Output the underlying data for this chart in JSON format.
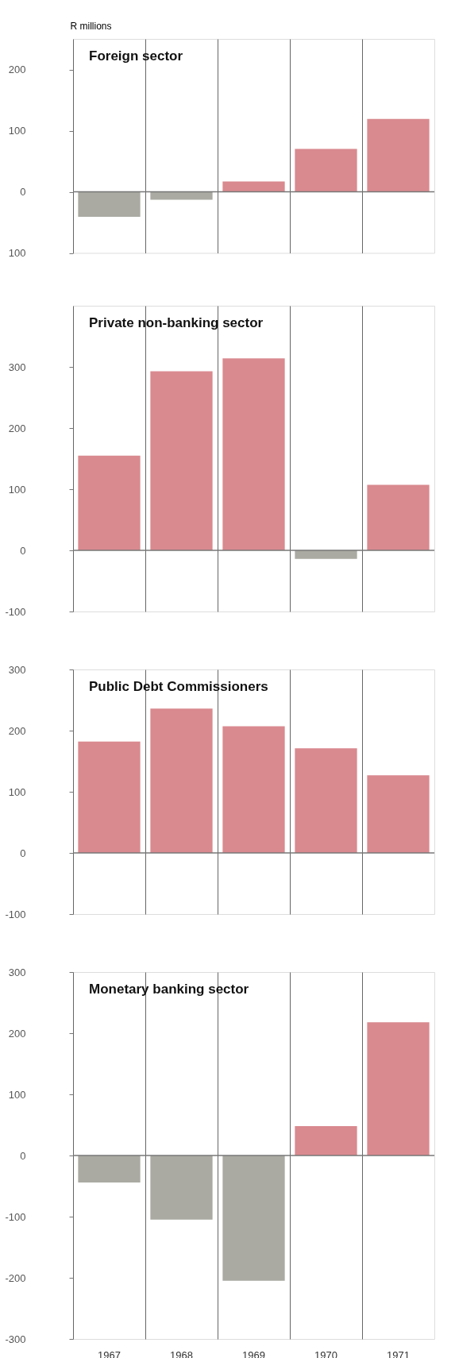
{
  "chart_data": [
    {
      "type": "bar",
      "title": "Foreign sector",
      "ylabel": "R millions",
      "categories": [
        "1967",
        "1968",
        "1969",
        "1970",
        "1971"
      ],
      "values": [
        -41,
        -13,
        17,
        70,
        119
      ],
      "colors": [
        "#aaaaa2",
        "#aaaaa2",
        "#d98a8f",
        "#d98a8f",
        "#d98a8f"
      ],
      "ylim": [
        -100,
        250
      ],
      "yticks": [
        {
          "value": -100,
          "label": "100"
        },
        0,
        100,
        200
      ],
      "grid": "x",
      "tick_labels": "y",
      "ref_lines": [
        {
          "axis": "y",
          "value": 0,
          "color": "#777777"
        }
      ]
    },
    {
      "type": "bar",
      "title": "Private non-banking sector",
      "categories": [
        "1967",
        "1968",
        "1969",
        "1970",
        "1971"
      ],
      "values": [
        155,
        293,
        314,
        -14,
        107
      ],
      "colors": [
        "#d98a8f",
        "#d98a8f",
        "#d98a8f",
        "#aaaaa2",
        "#d98a8f"
      ],
      "ylim": [
        -100,
        400
      ],
      "yticks": [
        -100,
        0,
        100,
        200,
        300
      ],
      "grid": "x",
      "tick_labels": "y",
      "ref_lines": [
        {
          "axis": "y",
          "value": 0,
          "color": "#777777"
        }
      ]
    },
    {
      "type": "bar",
      "title": "Public Debt Commissioners",
      "categories": [
        "1967",
        "1968",
        "1969",
        "1970",
        "1971"
      ],
      "values": [
        182,
        236,
        207,
        171,
        127
      ],
      "colors": [
        "#d98a8f",
        "#d98a8f",
        "#d98a8f",
        "#d98a8f",
        "#d98a8f"
      ],
      "ylim": [
        -100,
        300
      ],
      "yticks": [
        -100,
        0,
        100,
        200,
        300
      ],
      "grid": "x",
      "tick_labels": "y",
      "ref_lines": [
        {
          "axis": "y",
          "value": 0,
          "color": "#777777"
        }
      ]
    },
    {
      "type": "bar",
      "title": "Monetary banking sector",
      "categories": [
        "1967",
        "1968",
        "1969",
        "1970",
        "1971"
      ],
      "values": [
        -44,
        -105,
        -205,
        48,
        218
      ],
      "colors": [
        "#aaaaa2",
        "#aaaaa2",
        "#aaaaa2",
        "#d98a8f",
        "#d98a8f"
      ],
      "ylim": [
        -300,
        300
      ],
      "yticks": [
        -300,
        -200,
        -100,
        0,
        100,
        200,
        300
      ],
      "grid": "x",
      "ref_lines": [
        {
          "axis": "y",
          "value": 0,
          "color": "#777777"
        }
      ]
    }
  ]
}
